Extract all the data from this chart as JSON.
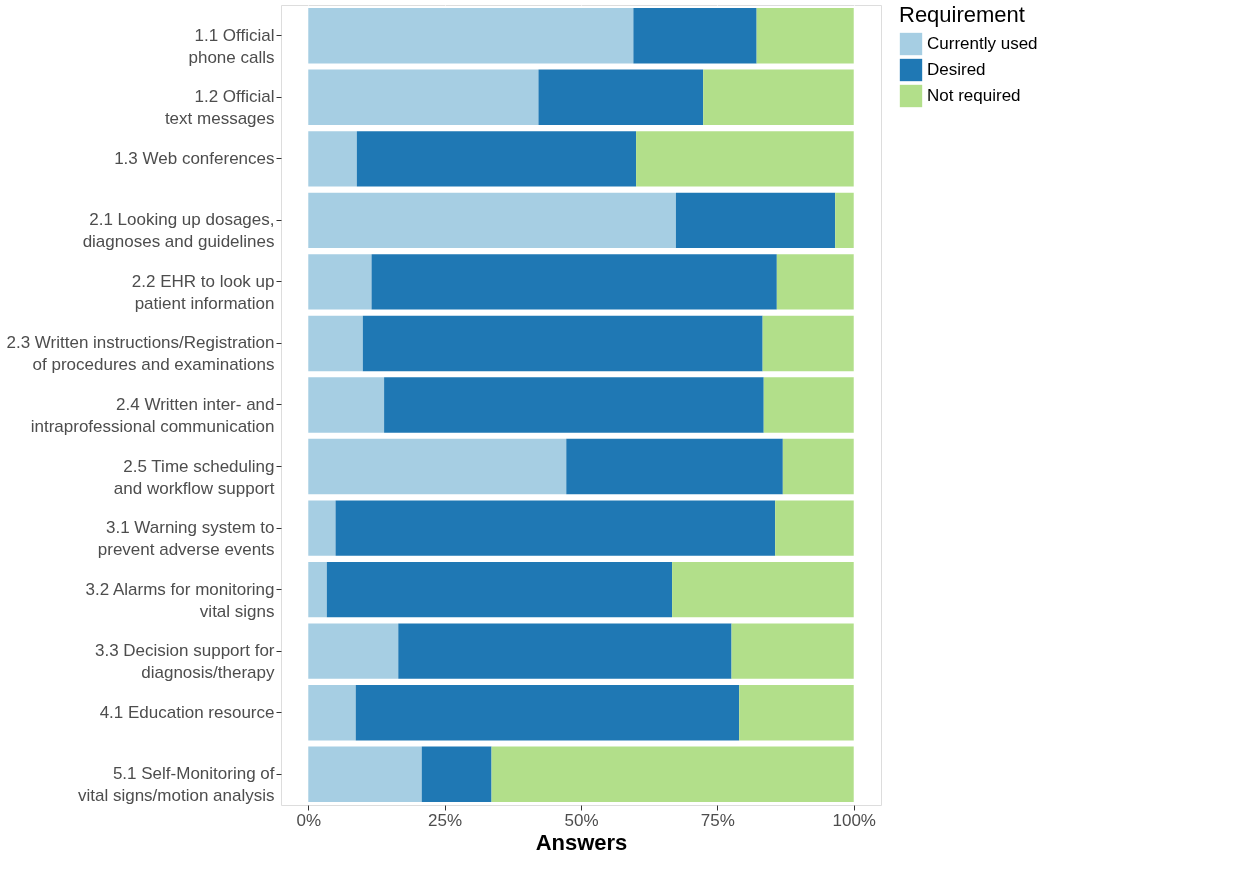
{
  "chart_data": {
    "type": "bar",
    "orientation": "horizontal",
    "stacked": true,
    "xlabel": "Answers",
    "legend_title": "Requirement",
    "legend": "right",
    "grid": "x",
    "categories": [
      "1.1 Official\nphone calls",
      "1.2 Official\ntext messages",
      "1.3 Web conferences",
      "2.1 Looking up dosages,\ndiagnoses and guidelines",
      "2.2 EHR to look up\npatient information",
      "2.3 Written instructions/Registration\nof procedures and examinations",
      "2.4 Written inter- and\nintraprofessional communication",
      "2.5 Time scheduling\nand workflow support",
      "3.1 Warning system to\nprevent adverse events",
      "3.2 Alarms for monitoring\nvital signs",
      "3.3 Decision support for\ndiagnosis/therapy",
      "4.1 Education resource",
      "5.1 Self-Monitoring of\nvital signs/motion analysis"
    ],
    "series": [
      {
        "name": "Currently used",
        "color": "#a6cee3",
        "values": [
          59.6,
          42.2,
          8.9,
          67.4,
          11.6,
          10.0,
          13.9,
          47.3,
          5.0,
          3.4,
          16.5,
          8.7,
          20.8
        ]
      },
      {
        "name": "Desired",
        "color": "#1f78b4",
        "values": [
          22.6,
          30.2,
          51.2,
          29.2,
          74.3,
          73.3,
          69.6,
          39.7,
          80.6,
          63.3,
          61.1,
          70.3,
          12.8
        ]
      },
      {
        "name": "Not required",
        "color": "#b2df8a",
        "values": [
          17.8,
          27.6,
          39.9,
          3.4,
          14.1,
          16.7,
          16.5,
          13.0,
          14.4,
          33.3,
          22.4,
          21.0,
          66.4
        ]
      }
    ],
    "xlim": [
      -5,
      105
    ],
    "xticks": [
      {
        "value": 0,
        "label": "0%"
      },
      {
        "value": 25,
        "label": "25%"
      },
      {
        "value": 50,
        "label": "50%"
      },
      {
        "value": 75,
        "label": "75%"
      },
      {
        "value": 100,
        "label": "100%"
      }
    ]
  }
}
